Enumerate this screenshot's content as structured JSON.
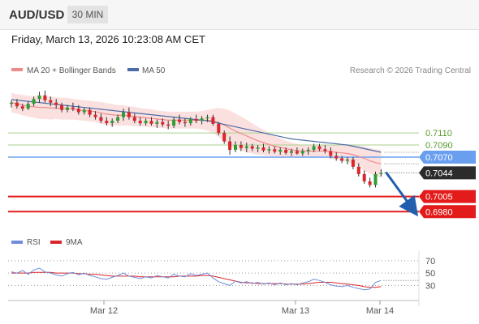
{
  "header": {
    "symbol": "AUD/USD",
    "timeframe": "30 MIN",
    "datetime": "Friday, March 13, 2026 10:23:08 AM CET"
  },
  "legend": {
    "ma20_label": "MA 20 + Bollinger Bands",
    "ma50_label": "MA 50",
    "copyright": "Research © 2026 Trading Central"
  },
  "rsi_legend": {
    "rsi_label": "RSI",
    "ma_label": "9MA"
  },
  "colors": {
    "up": "#2e9e33",
    "down": "#d9262b",
    "ma20": "#f08a8a",
    "ma50": "#4a6ca8",
    "band": "#fbe0e0",
    "green_level": "#a8d08d",
    "blue_level": "#6a9ff0",
    "red_level": "#e31b1b",
    "dark_tag": "#2b2b2b",
    "rsi": "#6f8ed8",
    "rsi_ma": "#d9262b",
    "arrow": "#1f5fae"
  },
  "chart_data": [
    {
      "type": "candlestick",
      "x_ticks": [
        "Mar 12",
        "Mar 13",
        "Mar 14"
      ],
      "y_range": [
        0.6975,
        0.7185
      ],
      "levels": [
        {
          "value": 0.711,
          "label": "0.7110",
          "style": "green"
        },
        {
          "value": 0.709,
          "label": "0.7090",
          "style": "green"
        },
        {
          "value": 0.707,
          "label": "0.7070",
          "style": "blue"
        },
        {
          "value": 0.7044,
          "label": "0.7044",
          "style": "dark"
        },
        {
          "value": 0.7005,
          "label": "0.7005",
          "style": "red"
        },
        {
          "value": 0.698,
          "label": "0.6980",
          "style": "red"
        }
      ],
      "forecast_arrow": {
        "from": 0.7045,
        "to": 0.6985
      },
      "candles": [
        [
          0.7158,
          0.7164,
          0.7152,
          0.716
        ],
        [
          0.716,
          0.7166,
          0.715,
          0.7154
        ],
        [
          0.7154,
          0.7158,
          0.7146,
          0.715
        ],
        [
          0.715,
          0.7162,
          0.7148,
          0.7158
        ],
        [
          0.7158,
          0.717,
          0.7154,
          0.7166
        ],
        [
          0.7166,
          0.7178,
          0.716,
          0.7172
        ],
        [
          0.7172,
          0.718,
          0.716,
          0.7164
        ],
        [
          0.7164,
          0.717,
          0.7154,
          0.716
        ],
        [
          0.716,
          0.7166,
          0.715,
          0.7156
        ],
        [
          0.7156,
          0.716,
          0.7144,
          0.7148
        ],
        [
          0.7148,
          0.7156,
          0.7144,
          0.7152
        ],
        [
          0.7152,
          0.716,
          0.7146,
          0.715
        ],
        [
          0.715,
          0.7156,
          0.714,
          0.7144
        ],
        [
          0.7144,
          0.7152,
          0.714,
          0.7148
        ],
        [
          0.7148,
          0.7152,
          0.7136,
          0.714
        ],
        [
          0.714,
          0.7146,
          0.7132,
          0.7136
        ],
        [
          0.7136,
          0.7142,
          0.7126,
          0.713
        ],
        [
          0.713,
          0.7136,
          0.7122,
          0.7126
        ],
        [
          0.7126,
          0.7134,
          0.712,
          0.713
        ],
        [
          0.713,
          0.714,
          0.7126,
          0.7136
        ],
        [
          0.7136,
          0.715,
          0.713,
          0.7144
        ],
        [
          0.7144,
          0.7152,
          0.7132,
          0.7136
        ],
        [
          0.7136,
          0.7142,
          0.7126,
          0.713
        ],
        [
          0.713,
          0.7136,
          0.7122,
          0.7126
        ],
        [
          0.7126,
          0.7134,
          0.7122,
          0.713
        ],
        [
          0.713,
          0.7136,
          0.7122,
          0.7125
        ],
        [
          0.7125,
          0.7132,
          0.7118,
          0.7128
        ],
        [
          0.7128,
          0.7134,
          0.712,
          0.7124
        ],
        [
          0.7124,
          0.713,
          0.7116,
          0.7122
        ],
        [
          0.7122,
          0.7136,
          0.7118,
          0.7132
        ],
        [
          0.7132,
          0.714,
          0.7124,
          0.7128
        ],
        [
          0.7128,
          0.7134,
          0.712,
          0.7126
        ],
        [
          0.7126,
          0.7136,
          0.7122,
          0.7133
        ],
        [
          0.7133,
          0.714,
          0.7126,
          0.713
        ],
        [
          0.713,
          0.7138,
          0.7124,
          0.7134
        ],
        [
          0.7134,
          0.714,
          0.7128,
          0.7136
        ],
        [
          0.7136,
          0.714,
          0.7122,
          0.7125
        ],
        [
          0.7125,
          0.7128,
          0.7106,
          0.711
        ],
        [
          0.711,
          0.7114,
          0.7092,
          0.7096
        ],
        [
          0.7096,
          0.7104,
          0.7074,
          0.7082
        ],
        [
          0.7082,
          0.7096,
          0.7078,
          0.709
        ],
        [
          0.709,
          0.7096,
          0.708,
          0.7085
        ],
        [
          0.7085,
          0.7094,
          0.7078,
          0.7088
        ],
        [
          0.7088,
          0.7092,
          0.708,
          0.7084
        ],
        [
          0.7084,
          0.709,
          0.7078,
          0.7086
        ],
        [
          0.7086,
          0.7092,
          0.7078,
          0.7081
        ],
        [
          0.7081,
          0.7088,
          0.7076,
          0.7083
        ],
        [
          0.7083,
          0.7088,
          0.7076,
          0.7079
        ],
        [
          0.7079,
          0.7086,
          0.7074,
          0.7082
        ],
        [
          0.7082,
          0.7086,
          0.7074,
          0.7077
        ],
        [
          0.7077,
          0.7084,
          0.7072,
          0.708
        ],
        [
          0.708,
          0.7086,
          0.7074,
          0.7076
        ],
        [
          0.7076,
          0.7084,
          0.7072,
          0.708
        ],
        [
          0.708,
          0.7086,
          0.7074,
          0.7082
        ],
        [
          0.7082,
          0.7092,
          0.7078,
          0.7088
        ],
        [
          0.7088,
          0.7092,
          0.708,
          0.7083
        ],
        [
          0.7083,
          0.709,
          0.7076,
          0.708
        ],
        [
          0.708,
          0.7086,
          0.7068,
          0.7072
        ],
        [
          0.7072,
          0.7078,
          0.7064,
          0.7068
        ],
        [
          0.7068,
          0.7072,
          0.706,
          0.7064
        ],
        [
          0.7064,
          0.707,
          0.7058,
          0.7066
        ],
        [
          0.7066,
          0.707,
          0.705,
          0.7054
        ],
        [
          0.7054,
          0.706,
          0.7038,
          0.7042
        ],
        [
          0.7042,
          0.7048,
          0.7026,
          0.703
        ],
        [
          0.703,
          0.7036,
          0.702,
          0.7024
        ],
        [
          0.7024,
          0.7046,
          0.702,
          0.7042
        ],
        [
          0.7042,
          0.705,
          0.7038,
          0.7044
        ]
      ],
      "ma20": [
        0.716,
        0.7158,
        0.7156,
        0.7154,
        0.7153,
        0.7152,
        0.7152,
        0.7151,
        0.7151,
        0.715,
        0.715,
        0.7149,
        0.7148,
        0.7147,
        0.7146,
        0.7145,
        0.7143,
        0.7141,
        0.714,
        0.7139,
        0.7139,
        0.7138,
        0.7137,
        0.7136,
        0.7135,
        0.7134,
        0.7133,
        0.7132,
        0.7131,
        0.7131,
        0.7131,
        0.7131,
        0.7131,
        0.7131,
        0.7131,
        0.7131,
        0.713,
        0.7127,
        0.7123,
        0.7118,
        0.7113,
        0.7109,
        0.7105,
        0.7101,
        0.7097,
        0.7094,
        0.7091,
        0.7088,
        0.7086,
        0.7084,
        0.7082,
        0.7081,
        0.708,
        0.708,
        0.708,
        0.708,
        0.708,
        0.7079,
        0.7078,
        0.7077,
        0.7076,
        0.7074,
        0.7071,
        0.7068,
        0.7064,
        0.7061,
        0.7059
      ],
      "bb_width": [
        0.0016,
        0.0016,
        0.0017,
        0.0017,
        0.0018,
        0.0019,
        0.0019,
        0.0019,
        0.0018,
        0.0018,
        0.0018,
        0.0017,
        0.0017,
        0.0017,
        0.0017,
        0.0017,
        0.0018,
        0.0018,
        0.0018,
        0.0017,
        0.0017,
        0.0016,
        0.0016,
        0.0015,
        0.0015,
        0.0015,
        0.0014,
        0.0014,
        0.0014,
        0.0014,
        0.0014,
        0.0014,
        0.0014,
        0.0014,
        0.0015,
        0.0017,
        0.002,
        0.0024,
        0.0027,
        0.0029,
        0.0029,
        0.0028,
        0.0027,
        0.0025,
        0.0023,
        0.0021,
        0.0019,
        0.0017,
        0.0015,
        0.0013,
        0.0012,
        0.0011,
        0.001,
        0.001,
        0.001,
        0.001,
        0.001,
        0.0011,
        0.0012,
        0.0013,
        0.0014,
        0.0016,
        0.0018,
        0.002,
        0.0021,
        0.0022,
        0.0023
      ],
      "ma50": [
        0.7165,
        0.7164,
        0.7163,
        0.7162,
        0.7161,
        0.716,
        0.7159,
        0.7158,
        0.7157,
        0.7156,
        0.7155,
        0.7154,
        0.7153,
        0.7152,
        0.7151,
        0.715,
        0.7149,
        0.7148,
        0.7147,
        0.7146,
        0.7145,
        0.7144,
        0.7143,
        0.7142,
        0.7141,
        0.714,
        0.7139,
        0.7138,
        0.7137,
        0.7136,
        0.7135,
        0.7134,
        0.7133,
        0.7132,
        0.7131,
        0.713,
        0.7128,
        0.7126,
        0.7124,
        0.7122,
        0.712,
        0.7118,
        0.7116,
        0.7114,
        0.7112,
        0.711,
        0.7108,
        0.7106,
        0.7104,
        0.7102,
        0.71,
        0.7099,
        0.7098,
        0.7097,
        0.7096,
        0.7095,
        0.7094,
        0.7093,
        0.7092,
        0.7091,
        0.709,
        0.7088,
        0.7086,
        0.7084,
        0.7082,
        0.708,
        0.7078
      ]
    },
    {
      "type": "line",
      "name_axis": "RSI",
      "y_range": [
        20,
        75
      ],
      "y_ticks": [
        70,
        50,
        30
      ],
      "rsi": [
        52,
        50,
        54,
        48,
        55,
        58,
        52,
        50,
        47,
        45,
        49,
        51,
        47,
        50,
        46,
        44,
        41,
        40,
        43,
        46,
        50,
        45,
        43,
        41,
        44,
        42,
        46,
        44,
        42,
        48,
        45,
        44,
        49,
        46,
        48,
        50,
        42,
        36,
        33,
        30,
        37,
        34,
        36,
        33,
        35,
        32,
        34,
        31,
        34,
        31,
        33,
        31,
        34,
        36,
        40,
        38,
        35,
        31,
        29,
        28,
        30,
        27,
        25,
        23,
        24,
        35,
        38
      ],
      "rsi_ma": [
        50,
        50,
        50,
        50,
        51,
        51,
        51,
        51,
        50,
        50,
        50,
        50,
        49,
        49,
        48,
        48,
        47,
        46,
        45,
        45,
        45,
        45,
        45,
        44,
        44,
        44,
        44,
        44,
        44,
        44,
        45,
        45,
        45,
        45,
        46,
        46,
        45,
        43,
        41,
        39,
        37,
        35,
        34,
        34,
        33,
        33,
        33,
        33,
        33,
        32,
        32,
        32,
        32,
        33,
        34,
        35,
        35,
        35,
        34,
        33,
        32,
        31,
        30,
        28,
        27,
        27,
        28
      ]
    }
  ]
}
